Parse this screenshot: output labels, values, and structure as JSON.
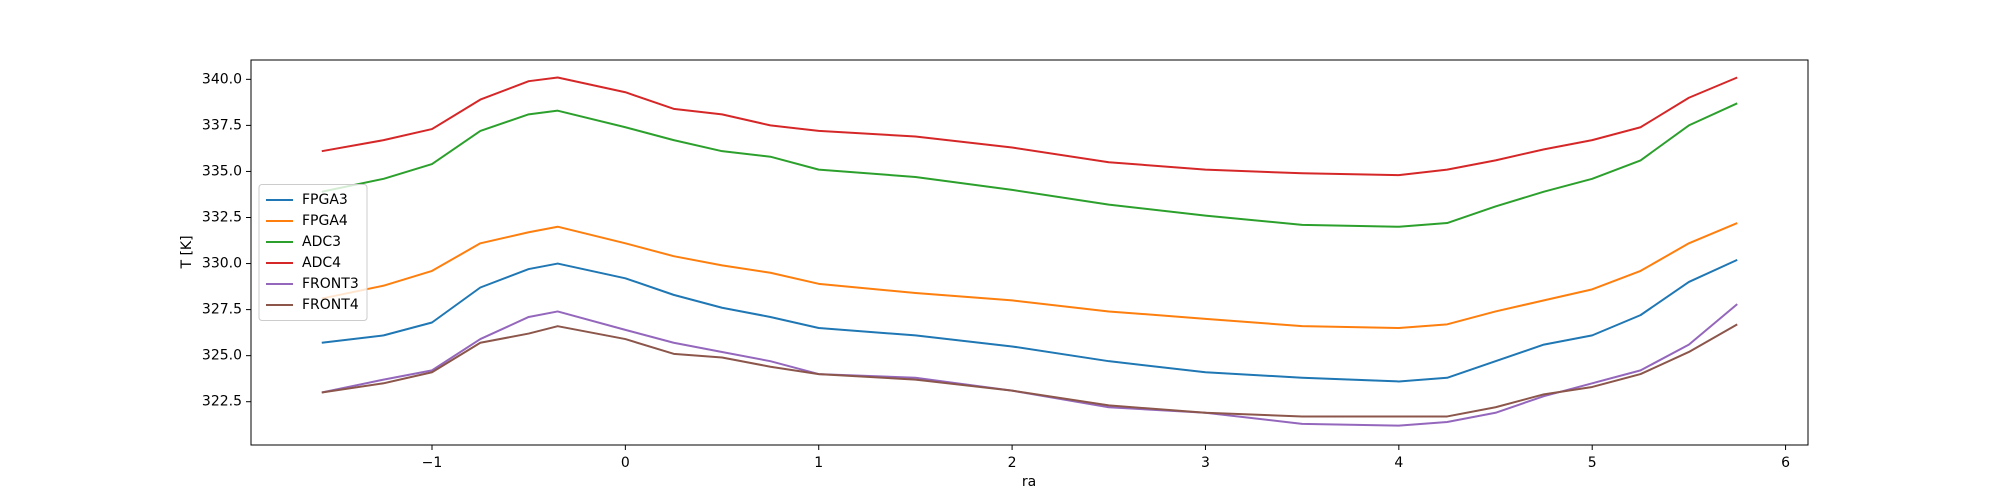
{
  "chart_data": {
    "type": "line",
    "xlabel": "ra",
    "ylabel": "T [K]",
    "x": [
      -1.57,
      -1.25,
      -1,
      -0.75,
      -0.5,
      -0.35,
      0,
      0.25,
      0.5,
      0.75,
      1,
      1.5,
      2,
      2.5,
      3,
      3.5,
      4,
      4.25,
      4.5,
      4.75,
      5,
      5.25,
      5.5,
      5.75
    ],
    "series": [
      {
        "name": "FPGA3",
        "color": "#1f77b4",
        "values": [
          325.7,
          326.1,
          326.8,
          328.7,
          329.7,
          330.0,
          329.2,
          328.3,
          327.6,
          327.1,
          326.5,
          326.1,
          325.5,
          324.7,
          324.1,
          323.8,
          323.6,
          323.8,
          324.7,
          325.6,
          326.1,
          327.2,
          329.0,
          330.2
        ]
      },
      {
        "name": "FPGA4",
        "color": "#ff7f0e",
        "values": [
          328.1,
          328.8,
          329.6,
          331.1,
          331.7,
          332.0,
          331.1,
          330.4,
          329.9,
          329.5,
          328.9,
          328.4,
          328.0,
          327.4,
          327.0,
          326.6,
          326.5,
          326.7,
          327.4,
          328.0,
          328.6,
          329.6,
          331.1,
          332.2
        ]
      },
      {
        "name": "ADC3",
        "color": "#2ca02c",
        "values": [
          333.9,
          334.6,
          335.4,
          337.2,
          338.1,
          338.3,
          337.4,
          336.7,
          336.1,
          335.8,
          335.1,
          334.7,
          334.0,
          333.2,
          332.6,
          332.1,
          332.0,
          332.2,
          333.1,
          333.9,
          334.6,
          335.6,
          337.5,
          338.7
        ]
      },
      {
        "name": "ADC4",
        "color": "#d62728",
        "values": [
          336.1,
          336.7,
          337.3,
          338.9,
          339.9,
          340.1,
          339.3,
          338.4,
          338.1,
          337.5,
          337.2,
          336.9,
          336.3,
          335.5,
          335.1,
          334.9,
          334.8,
          335.1,
          335.6,
          336.2,
          336.7,
          337.4,
          339.0,
          340.1
        ]
      },
      {
        "name": "FRONT3",
        "color": "#9467bd",
        "values": [
          323.0,
          323.7,
          324.2,
          325.9,
          327.1,
          327.4,
          326.4,
          325.7,
          325.2,
          324.7,
          324.0,
          323.8,
          323.1,
          322.2,
          321.9,
          321.3,
          321.2,
          321.4,
          321.9,
          322.8,
          323.5,
          324.2,
          325.6,
          327.8
        ]
      },
      {
        "name": "FRONT4",
        "color": "#8c564b",
        "values": [
          323.0,
          323.5,
          324.1,
          325.7,
          326.2,
          326.6,
          325.9,
          325.1,
          324.9,
          324.4,
          324.0,
          323.7,
          323.1,
          322.3,
          321.9,
          321.7,
          321.7,
          321.7,
          322.2,
          322.9,
          323.3,
          324.0,
          325.2,
          326.7
        ]
      }
    ],
    "xlim": [
      -1.936,
      6.116
    ],
    "ylim": [
      320.15,
      341.05
    ],
    "xticks": [
      {
        "value": -1,
        "label": "−1"
      },
      0,
      1,
      2,
      3,
      4,
      5,
      6
    ],
    "yticks": [
      322.5,
      {
        "value": 325,
        "label": "325.0"
      },
      327.5,
      {
        "value": 330,
        "label": "330.0"
      },
      332.5,
      {
        "value": 335,
        "label": "335.0"
      },
      337.5,
      {
        "value": 340,
        "label": "340.0"
      }
    ],
    "legend": "center left"
  }
}
